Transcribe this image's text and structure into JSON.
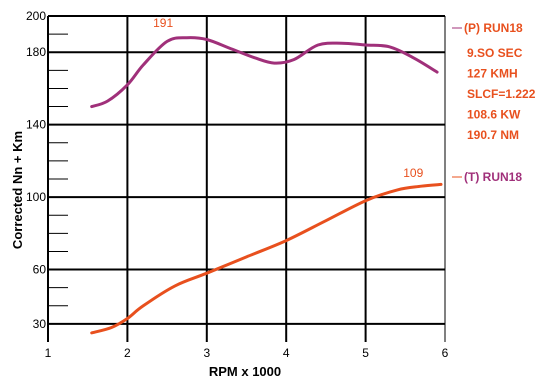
{
  "chart_data": {
    "type": "line",
    "ylabel": "Corrected Nn + Km",
    "xlabel": "RPM x 1000",
    "xlim": [
      1,
      6
    ],
    "ylim": [
      20,
      200
    ],
    "x_ticks": [
      "1",
      "2",
      "3",
      "4",
      "5",
      "6"
    ],
    "y_ticks": [
      "200",
      "180",
      "140",
      "100",
      "60",
      "30"
    ],
    "grid": true,
    "series": [
      {
        "name": "(P) RUN18",
        "color": "#a0307a",
        "x": [
          1.55,
          1.75,
          2.0,
          2.2,
          2.5,
          2.75,
          3.0,
          3.3,
          3.6,
          3.85,
          4.1,
          4.4,
          4.7,
          5.0,
          5.3,
          5.6,
          5.9
        ],
        "y": [
          150,
          153,
          162,
          173,
          186,
          188,
          187,
          182,
          177,
          174,
          176,
          184,
          185,
          184,
          183,
          177,
          169
        ]
      },
      {
        "name": "(T) RUN18",
        "color": "#e8501e",
        "x": [
          1.55,
          1.8,
          2.0,
          2.2,
          2.6,
          3.0,
          3.5,
          4.0,
          4.5,
          5.0,
          5.4,
          5.7,
          5.95
        ],
        "y": [
          25,
          28,
          33,
          40,
          51,
          58,
          67,
          76,
          87,
          98,
          104,
          106,
          107
        ]
      }
    ],
    "annotations": [
      {
        "text": "191",
        "x": 2.45,
        "y": 194
      },
      {
        "text": "109",
        "x": 5.6,
        "y": 111
      }
    ],
    "info_block": [
      "9.SO SEC",
      "127 KMH",
      "SLCF=1.222",
      "108.6 KW",
      "190.7 NM"
    ]
  }
}
